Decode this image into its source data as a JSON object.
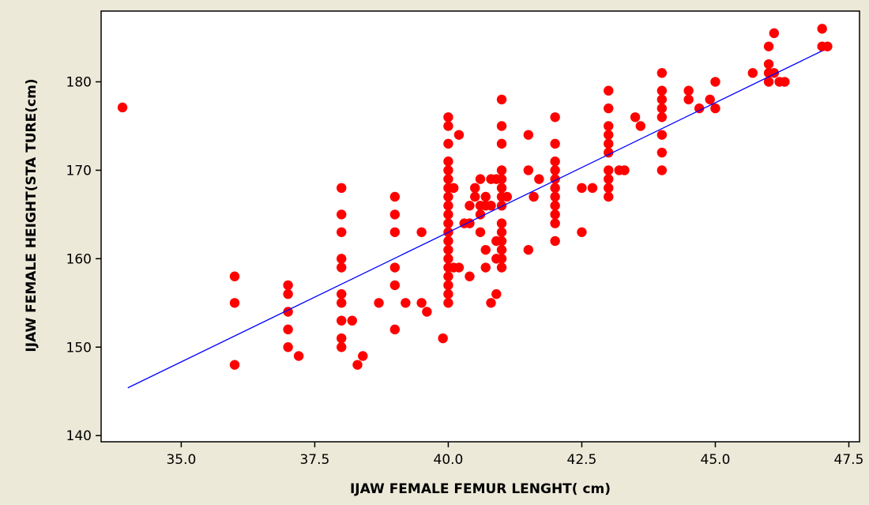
{
  "chart_data": {
    "type": "scatter",
    "title": "",
    "xlabel": "IJAW FEMALE FEMUR LENGHT( cm)",
    "ylabel": "IJAW FEMALE  HEIGHT(STA TURE(cm)",
    "xlim": [
      33.5,
      47.7
    ],
    "ylim": [
      139.3,
      188
    ],
    "x_ticks": [
      "35.0",
      "37.5",
      "40.0",
      "42.5",
      "45.0",
      "47.5"
    ],
    "y_ticks": [
      "140",
      "150",
      "160",
      "170",
      "180"
    ],
    "grid": false,
    "legend": "none",
    "point_color": "#ff0000",
    "line_color": "#0000ff",
    "plot_background": "#ffffff",
    "figure_background": "#ece9d8",
    "fit_line": {
      "x": [
        34.0,
        47.0
      ],
      "y": [
        145.4,
        183.5
      ]
    },
    "series": [
      {
        "points": [
          [
            33.9,
            177.1
          ],
          [
            36.0,
            158.0
          ],
          [
            36.0,
            155.0
          ],
          [
            36.0,
            148.0
          ],
          [
            37.0,
            157.0
          ],
          [
            37.0,
            156.0
          ],
          [
            37.0,
            154.0
          ],
          [
            37.0,
            152.0
          ],
          [
            37.0,
            150.0
          ],
          [
            37.2,
            149.0
          ],
          [
            38.0,
            168.0
          ],
          [
            38.0,
            165.0
          ],
          [
            38.0,
            163.0
          ],
          [
            38.0,
            160.0
          ],
          [
            38.0,
            159.0
          ],
          [
            38.0,
            156.0
          ],
          [
            38.0,
            155.0
          ],
          [
            38.0,
            153.0
          ],
          [
            38.0,
            151.0
          ],
          [
            38.0,
            150.0
          ],
          [
            38.2,
            153.0
          ],
          [
            38.3,
            148.0
          ],
          [
            38.4,
            149.0
          ],
          [
            38.7,
            155.0
          ],
          [
            39.0,
            167.0
          ],
          [
            39.0,
            165.0
          ],
          [
            39.0,
            163.0
          ],
          [
            39.0,
            159.0
          ],
          [
            39.0,
            157.0
          ],
          [
            39.0,
            152.0
          ],
          [
            39.2,
            155.0
          ],
          [
            39.5,
            163.0
          ],
          [
            39.5,
            155.0
          ],
          [
            39.6,
            154.0
          ],
          [
            39.9,
            151.0
          ],
          [
            40.0,
            176.0
          ],
          [
            40.0,
            175.0
          ],
          [
            40.0,
            173.0
          ],
          [
            40.0,
            171.0
          ],
          [
            40.0,
            170.0
          ],
          [
            40.0,
            169.0
          ],
          [
            40.0,
            168.0
          ],
          [
            40.0,
            167.0
          ],
          [
            40.0,
            166.0
          ],
          [
            40.0,
            165.0
          ],
          [
            40.0,
            164.0
          ],
          [
            40.0,
            163.0
          ],
          [
            40.0,
            162.0
          ],
          [
            40.0,
            161.0
          ],
          [
            40.0,
            160.0
          ],
          [
            40.0,
            159.0
          ],
          [
            40.0,
            158.0
          ],
          [
            40.0,
            157.0
          ],
          [
            40.0,
            156.0
          ],
          [
            40.0,
            155.0
          ],
          [
            40.1,
            168.0
          ],
          [
            40.1,
            159.0
          ],
          [
            40.2,
            174.0
          ],
          [
            40.2,
            159.0
          ],
          [
            40.3,
            164.0
          ],
          [
            40.4,
            166.0
          ],
          [
            40.4,
            164.0
          ],
          [
            40.4,
            158.0
          ],
          [
            40.5,
            168.0
          ],
          [
            40.5,
            167.0
          ],
          [
            40.6,
            169.0
          ],
          [
            40.6,
            166.0
          ],
          [
            40.6,
            165.0
          ],
          [
            40.6,
            163.0
          ],
          [
            40.7,
            167.0
          ],
          [
            40.7,
            166.0
          ],
          [
            40.7,
            161.0
          ],
          [
            40.7,
            159.0
          ],
          [
            40.8,
            169.0
          ],
          [
            40.8,
            166.0
          ],
          [
            40.8,
            155.0
          ],
          [
            40.9,
            169.0
          ],
          [
            40.9,
            162.0
          ],
          [
            40.9,
            160.0
          ],
          [
            40.9,
            156.0
          ],
          [
            41.0,
            178.0
          ],
          [
            41.0,
            175.0
          ],
          [
            41.0,
            173.0
          ],
          [
            41.0,
            170.0
          ],
          [
            41.0,
            169.0
          ],
          [
            41.0,
            168.0
          ],
          [
            41.0,
            167.0
          ],
          [
            41.0,
            166.0
          ],
          [
            41.0,
            164.0
          ],
          [
            41.0,
            163.0
          ],
          [
            41.0,
            162.0
          ],
          [
            41.0,
            161.0
          ],
          [
            41.0,
            160.0
          ],
          [
            41.0,
            159.0
          ],
          [
            41.1,
            167.0
          ],
          [
            41.5,
            174.0
          ],
          [
            41.5,
            170.0
          ],
          [
            41.5,
            161.0
          ],
          [
            41.6,
            167.0
          ],
          [
            41.7,
            169.0
          ],
          [
            42.0,
            176.0
          ],
          [
            42.0,
            173.0
          ],
          [
            42.0,
            171.0
          ],
          [
            42.0,
            170.0
          ],
          [
            42.0,
            169.0
          ],
          [
            42.0,
            168.0
          ],
          [
            42.0,
            167.0
          ],
          [
            42.0,
            166.0
          ],
          [
            42.0,
            165.0
          ],
          [
            42.0,
            164.0
          ],
          [
            42.0,
            162.0
          ],
          [
            42.5,
            168.0
          ],
          [
            42.5,
            163.0
          ],
          [
            42.7,
            168.0
          ],
          [
            43.0,
            179.0
          ],
          [
            43.0,
            177.0
          ],
          [
            43.0,
            175.0
          ],
          [
            43.0,
            174.0
          ],
          [
            43.0,
            173.0
          ],
          [
            43.0,
            172.0
          ],
          [
            43.0,
            170.0
          ],
          [
            43.0,
            169.0
          ],
          [
            43.0,
            168.0
          ],
          [
            43.0,
            167.0
          ],
          [
            43.2,
            170.0
          ],
          [
            43.3,
            170.0
          ],
          [
            43.5,
            176.0
          ],
          [
            43.6,
            175.0
          ],
          [
            44.0,
            181.0
          ],
          [
            44.0,
            179.0
          ],
          [
            44.0,
            178.0
          ],
          [
            44.0,
            177.0
          ],
          [
            44.0,
            176.0
          ],
          [
            44.0,
            174.0
          ],
          [
            44.0,
            172.0
          ],
          [
            44.0,
            170.0
          ],
          [
            44.5,
            179.0
          ],
          [
            44.5,
            178.0
          ],
          [
            44.7,
            177.0
          ],
          [
            44.9,
            178.0
          ],
          [
            45.0,
            180.0
          ],
          [
            45.0,
            177.0
          ],
          [
            45.7,
            181.0
          ],
          [
            46.0,
            184.0
          ],
          [
            46.0,
            182.0
          ],
          [
            46.0,
            181.0
          ],
          [
            46.0,
            180.0
          ],
          [
            46.1,
            185.5
          ],
          [
            46.1,
            181.0
          ],
          [
            46.2,
            180.0
          ],
          [
            46.3,
            180.0
          ],
          [
            47.0,
            186.0
          ],
          [
            47.0,
            184.0
          ],
          [
            47.1,
            184.0
          ]
        ]
      }
    ]
  }
}
